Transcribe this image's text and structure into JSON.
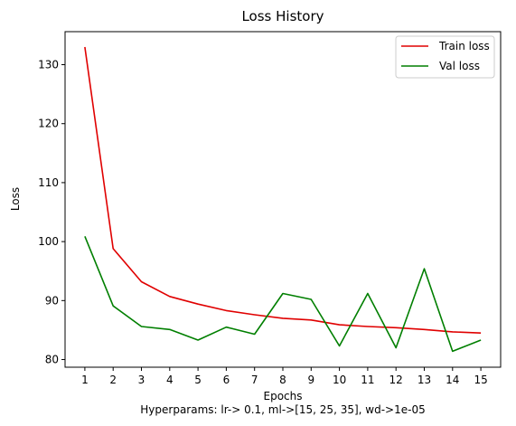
{
  "chart_data": {
    "type": "line",
    "title": "Loss History",
    "xlabel": "Epochs",
    "ylabel": "Loss",
    "caption": "Hyperparams: lr-> 0.1, ml->[15, 25, 35], wd->1e-05",
    "x": [
      1,
      2,
      3,
      4,
      5,
      6,
      7,
      8,
      9,
      10,
      11,
      12,
      13,
      14,
      15
    ],
    "xticks": [
      "1",
      "2",
      "3",
      "4",
      "5",
      "6",
      "7",
      "8",
      "9",
      "10",
      "11",
      "12",
      "13",
      "14",
      "15"
    ],
    "yticks": [
      80,
      90,
      100,
      110,
      120,
      130
    ],
    "xlim": [
      0.3,
      15.7
    ],
    "ylim": [
      78.7,
      135.6
    ],
    "grid": false,
    "legend_position": "top-right",
    "series": [
      {
        "name": "Train loss",
        "color": "#e00000",
        "values": [
          133.0,
          98.8,
          93.2,
          90.7,
          89.4,
          88.3,
          87.6,
          87.0,
          86.7,
          85.9,
          85.6,
          85.4,
          85.1,
          84.7,
          84.5
        ]
      },
      {
        "name": "Val loss",
        "color": "#007f00",
        "values": [
          100.9,
          89.1,
          85.6,
          85.1,
          83.3,
          85.5,
          84.3,
          91.2,
          90.2,
          82.3,
          91.2,
          82.0,
          95.4,
          81.4,
          83.3
        ]
      }
    ]
  }
}
